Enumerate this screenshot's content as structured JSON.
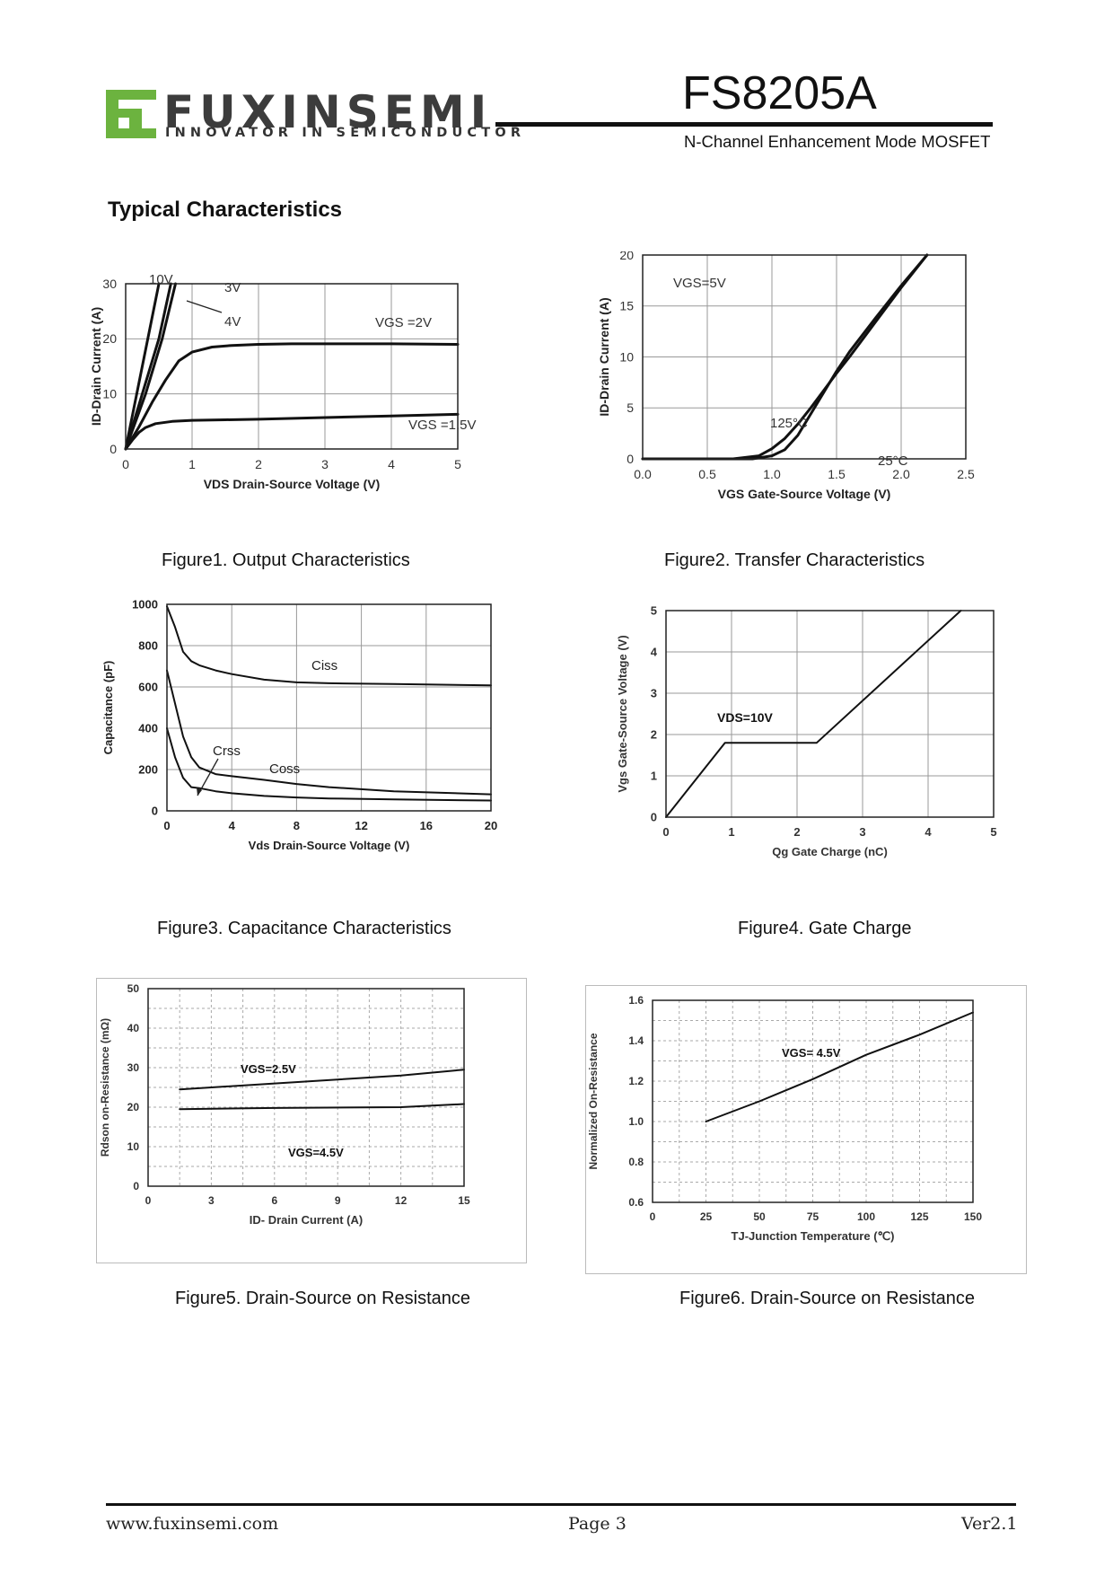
{
  "header": {
    "logo_text": "FUXINSEMI",
    "logo_tagline": "INNOVATOR IN SEMICONDUCTOR",
    "brand_green": "#6cb33f",
    "part_number": "FS8205A",
    "subtitle": "N-Channel Enhancement Mode MOSFET"
  },
  "section_title": "Typical Characteristics",
  "figures": [
    {
      "caption": "Figure1.  Output Characteristics"
    },
    {
      "caption": "Figure2.  Transfer Characteristics"
    },
    {
      "caption": "Figure3.  Capacitance Characteristics"
    },
    {
      "caption": "Figure4. Gate Charge"
    },
    {
      "caption": "Figure5. Drain-Source on Resistance"
    },
    {
      "caption": "Figure6. Drain-Source on Resistance"
    }
  ],
  "chart_data": [
    {
      "type": "line",
      "xlabel": "VDS Drain-Source Voltage (V)",
      "ylabel": "ID-Drain Current (A)",
      "xlim": [
        0,
        5
      ],
      "ylim": [
        0,
        30
      ],
      "xticks": [
        "0",
        "1",
        "2",
        "3",
        "4",
        "5"
      ],
      "yticks": [
        "0",
        "10",
        "20",
        "30"
      ],
      "grid": true,
      "annotations": [
        "10V",
        "3V",
        "4V",
        "VGS =2V",
        "VGS =1.5V"
      ],
      "series": [
        {
          "name": "10V",
          "x": [
            0,
            0.5
          ],
          "y": [
            0,
            30
          ]
        },
        {
          "name": "4V",
          "x": [
            0,
            0.25,
            0.5,
            0.68
          ],
          "y": [
            0,
            10,
            20,
            30
          ]
        },
        {
          "name": "3V",
          "x": [
            0,
            0.3,
            0.55,
            0.75
          ],
          "y": [
            0,
            10,
            20,
            30
          ]
        },
        {
          "name": "VGS =2V",
          "x": [
            0,
            0.2,
            0.4,
            0.6,
            0.8,
            1.0,
            1.3,
            1.6,
            2.0,
            2.5,
            3.0,
            4.0,
            5.0
          ],
          "y": [
            0,
            4,
            8.5,
            12.5,
            16,
            17.6,
            18.5,
            18.8,
            19.0,
            19.1,
            19.1,
            19.1,
            19.0
          ]
        },
        {
          "name": "VGS =1.5V",
          "x": [
            0,
            0.1,
            0.2,
            0.3,
            0.45,
            0.7,
            1.0,
            1.5,
            2.0,
            3.0,
            4.0,
            5.0
          ],
          "y": [
            0,
            1.6,
            3.0,
            3.9,
            4.6,
            5.0,
            5.2,
            5.3,
            5.4,
            5.7,
            6.0,
            6.3
          ]
        }
      ]
    },
    {
      "type": "line",
      "xlabel": "VGS Gate-Source Voltage (V)",
      "ylabel": "ID-Drain Current (A)",
      "xlim": [
        0,
        2.5
      ],
      "ylim": [
        0,
        20
      ],
      "xticks": [
        "0.0",
        "0.5",
        "1.0",
        "1.5",
        "2.0",
        "2.5"
      ],
      "yticks": [
        "0",
        "5",
        "10",
        "15",
        "20"
      ],
      "grid": true,
      "annotations": [
        "VGS=5V",
        "125°C",
        "25°C"
      ],
      "series": [
        {
          "name": "125°C",
          "x": [
            0,
            0.7,
            0.9,
            1.0,
            1.1,
            1.2,
            1.3,
            1.4,
            1.5,
            1.6,
            1.8,
            2.0,
            2.2
          ],
          "y": [
            0,
            0,
            0.3,
            1.0,
            2.0,
            3.4,
            5.0,
            6.7,
            8.4,
            10.0,
            13.4,
            16.8,
            20
          ]
        },
        {
          "name": "25°C",
          "x": [
            0,
            0.85,
            1.0,
            1.1,
            1.2,
            1.3,
            1.4,
            1.5,
            1.6,
            1.8,
            2.0,
            2.2
          ],
          "y": [
            0,
            0,
            0.3,
            0.9,
            2.3,
            4.4,
            6.5,
            8.6,
            10.5,
            13.8,
            17.0,
            20
          ]
        }
      ]
    },
    {
      "type": "line",
      "xlabel": "Vds Drain-Source Voltage (V)",
      "ylabel": "Capacitance (pF)",
      "xlim": [
        0,
        20
      ],
      "ylim": [
        0,
        1000
      ],
      "xticks": [
        "0",
        "4",
        "8",
        "12",
        "16",
        "20"
      ],
      "yticks": [
        "0",
        "200",
        "400",
        "600",
        "800",
        "1000"
      ],
      "grid": true,
      "annotations": [
        "Ciss",
        "Crss",
        "Coss"
      ],
      "series": [
        {
          "name": "Ciss",
          "x": [
            0,
            0.5,
            1,
            1.5,
            2,
            3,
            4,
            6,
            8,
            10,
            14,
            20
          ],
          "y": [
            990,
            890,
            770,
            725,
            705,
            680,
            662,
            635,
            622,
            618,
            614,
            608
          ]
        },
        {
          "name": "Coss",
          "x": [
            0,
            0.5,
            1,
            1.5,
            2,
            3,
            4,
            6,
            8,
            10,
            14,
            20
          ],
          "y": [
            680,
            520,
            360,
            260,
            210,
            178,
            168,
            150,
            130,
            115,
            95,
            80
          ]
        },
        {
          "name": "Crss",
          "x": [
            0,
            0.5,
            1,
            1.5,
            2,
            3,
            4,
            6,
            8,
            10,
            14,
            20
          ],
          "y": [
            400,
            260,
            160,
            115,
            110,
            95,
            85,
            72,
            65,
            60,
            55,
            50
          ]
        }
      ]
    },
    {
      "type": "line",
      "xlabel": "Qg Gate Charge (nC)",
      "ylabel": "Vgs Gate-Source Voltage (V)",
      "xlim": [
        0,
        5
      ],
      "ylim": [
        0,
        5
      ],
      "xticks": [
        "0",
        "1",
        "2",
        "3",
        "4",
        "5"
      ],
      "yticks": [
        "0",
        "1",
        "2",
        "3",
        "4",
        "5"
      ],
      "grid": true,
      "annotations": [
        "VDS=10V"
      ],
      "series": [
        {
          "name": "VDS=10V",
          "x": [
            0,
            0.9,
            2.3,
            4.5
          ],
          "y": [
            0,
            1.8,
            1.8,
            5.0
          ]
        }
      ]
    },
    {
      "type": "line",
      "xlabel": "ID- Drain Current (A)",
      "ylabel": "Rdson on-Resistance (mΩ)",
      "xlim": [
        0,
        15
      ],
      "ylim": [
        0,
        50
      ],
      "xticks": [
        "0",
        "3",
        "6",
        "9",
        "12",
        "15"
      ],
      "yticks": [
        "0",
        "10",
        "20",
        "30",
        "40",
        "50"
      ],
      "grid": true,
      "annotations": [
        "VGS=2.5V",
        "VGS=4.5V"
      ],
      "series": [
        {
          "name": "VGS=2.5V",
          "x": [
            1.5,
            6,
            12,
            15
          ],
          "y": [
            24.5,
            26.0,
            28.0,
            29.5
          ]
        },
        {
          "name": "VGS=4.5V",
          "x": [
            1.5,
            6,
            12,
            15
          ],
          "y": [
            19.5,
            19.8,
            20.0,
            20.8
          ]
        }
      ]
    },
    {
      "type": "line",
      "xlabel": "TJ-Junction Temperature (℃)",
      "ylabel": "Normalized On-Resistance",
      "xlim": [
        0,
        150
      ],
      "ylim": [
        0.6,
        1.6
      ],
      "xticks": [
        "0",
        "25",
        "50",
        "75",
        "100",
        "125",
        "150"
      ],
      "yticks": [
        "0.6",
        "0.8",
        "1.0",
        "1.2",
        "1.4",
        "1.6"
      ],
      "grid": true,
      "annotations": [
        "VGS= 4.5V"
      ],
      "series": [
        {
          "name": "VGS= 4.5V",
          "x": [
            25,
            50,
            75,
            100,
            125,
            150
          ],
          "y": [
            1.0,
            1.1,
            1.21,
            1.33,
            1.43,
            1.54
          ]
        }
      ]
    }
  ],
  "footer": {
    "website": "www.fuxinsemi.com",
    "page": "Page 3",
    "version": "Ver2.1"
  }
}
